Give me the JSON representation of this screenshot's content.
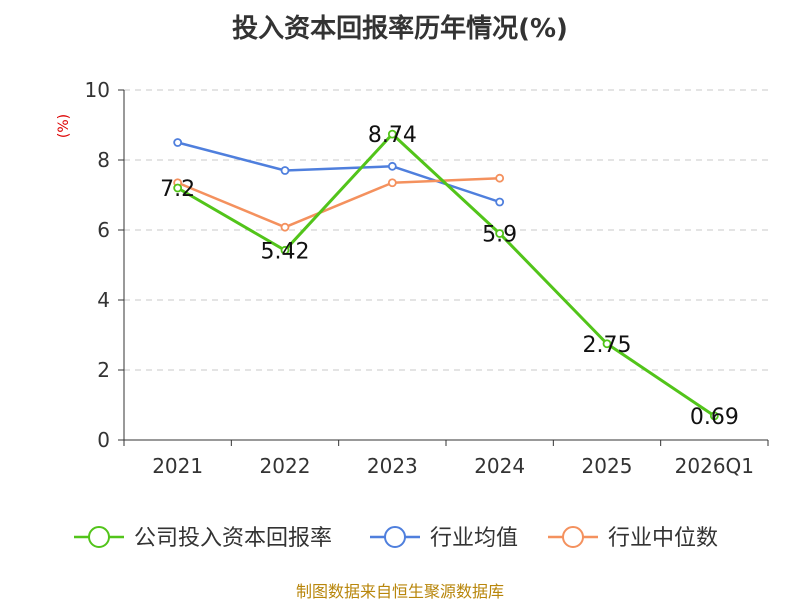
{
  "title": "投入资本回报率历年情况(%)",
  "source": "制图数据来自恒生聚源数据库",
  "chart_data": {
    "type": "line",
    "title": "投入资本回报率历年情况(%)",
    "ylabel": "(%)",
    "xlabel": "",
    "ylim": [
      0,
      10
    ],
    "yticks": [
      0,
      2,
      4,
      6,
      8,
      10
    ],
    "categories": [
      "2021",
      "2022",
      "2023",
      "2024",
      "2025",
      "2026Q1"
    ],
    "grid": true,
    "legend": "bottom",
    "series": [
      {
        "name": "公司投入资本回报率",
        "color": "#52c41a",
        "values": [
          7.2,
          5.42,
          8.74,
          5.9,
          2.75,
          0.69
        ],
        "labels": [
          "7.2",
          "5.42",
          "8.74",
          "5.9",
          "2.75",
          "0.69"
        ]
      },
      {
        "name": "行业均值",
        "color": "#4f7fdd",
        "values": [
          8.5,
          7.7,
          7.82,
          6.8,
          null,
          null
        ]
      },
      {
        "name": "行业中位数",
        "color": "#f4915e",
        "values": [
          7.35,
          6.08,
          7.35,
          7.48,
          null,
          null
        ]
      }
    ]
  }
}
